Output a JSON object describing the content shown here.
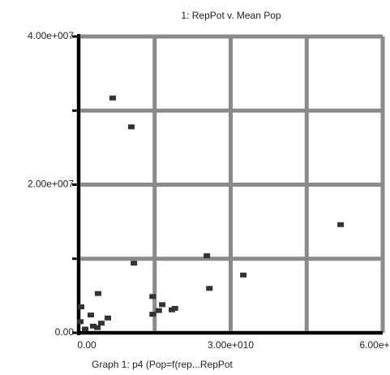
{
  "chart_data": {
    "type": "scatter",
    "title": "1: RepPot v. Mean Pop",
    "xlabel": "Graph 1: p4 (Pop=f(rep...RepPot",
    "xlim": [
      0,
      60000000000
    ],
    "ylim": [
      0,
      40000000
    ],
    "xticks": [
      {
        "value": 0,
        "label": "0.00"
      },
      {
        "value": 15000000000,
        "label": null
      },
      {
        "value": 30000000000,
        "label": "3.00e+010"
      },
      {
        "value": 45000000000,
        "label": null
      },
      {
        "value": 60000000000,
        "label": "6.00e+010"
      }
    ],
    "yticks": [
      {
        "value": 0,
        "label": "0.00"
      },
      {
        "value": 10000000,
        "label": null
      },
      {
        "value": 20000000,
        "label": "2.00e+007"
      },
      {
        "value": 30000000,
        "label": null
      },
      {
        "value": 40000000,
        "label": "4.00e+007"
      }
    ],
    "grid": true,
    "color": "#333333",
    "x": [
      6720000000,
      10400000000,
      51700000000,
      10900000000,
      25300000000,
      32500000000,
      25800000000,
      3840000000,
      14600000000,
      16500000000,
      15800000000,
      14600000000,
      18400000000,
      19000000000,
      2400000000,
      480000000,
      5760000000,
      4480000000,
      2880000000,
      1280000000,
      320000000,
      3700000000
    ],
    "values": [
      31700000,
      27800000,
      14600000,
      9400000,
      10400000,
      7800000,
      6000000,
      5300000,
      4900000,
      3800000,
      3000000,
      2500000,
      3100000,
      3300000,
      2400000,
      3500000,
      2000000,
      1300000,
      900000,
      500000,
      1500000,
      700000
    ]
  }
}
